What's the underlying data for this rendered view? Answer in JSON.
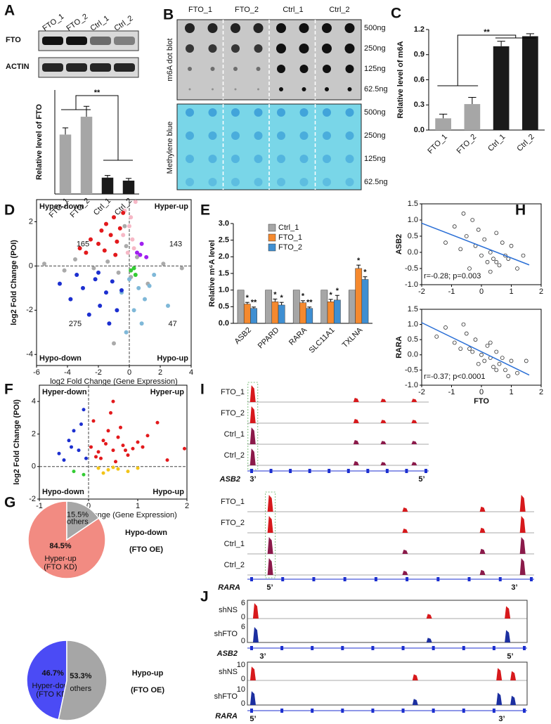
{
  "panel_labels": [
    "A",
    "B",
    "C",
    "D",
    "E",
    "F",
    "G",
    "H",
    "I",
    "J"
  ],
  "blot_A": {
    "samples": [
      "FTO_1",
      "FTO_2",
      "Ctrl_1",
      "Ctrl_2"
    ],
    "rows": [
      "FTO",
      "ACTIN"
    ]
  },
  "blot_B": {
    "samples": [
      "FTO_1",
      "FTO_2",
      "Ctrl_1",
      "Ctrl_2"
    ],
    "amounts": [
      "500ng",
      "250ng",
      "125ng",
      "62.5ng"
    ],
    "stains": [
      "m6A dot blot",
      "Methylene blue"
    ]
  },
  "chart_data": [
    {
      "type": "bar",
      "categories": [
        "FTO_1",
        "FTO_2",
        "Ctrl_1",
        "Ctrl_2"
      ],
      "values": [
        4.0,
        5.2,
        1.1,
        0.9
      ],
      "errors": [
        0.45,
        0.7,
        0.15,
        0.15
      ],
      "colors": [
        "#a6a6a6",
        "#a6a6a6",
        "#1a1a1a",
        "#1a1a1a"
      ],
      "ylim": [
        0,
        7
      ],
      "y_label": "Relative level of FTO",
      "annotation": "**"
    },
    {
      "type": "bar",
      "categories": [
        "FTO_1",
        "FTO_2",
        "Ctrl_1",
        "Ctrl_2"
      ],
      "values": [
        0.14,
        0.31,
        1.0,
        1.12
      ],
      "errors": [
        0.05,
        0.08,
        0.06,
        0.03
      ],
      "colors": [
        "#a6a6a6",
        "#a6a6a6",
        "#1a1a1a",
        "#1a1a1a"
      ],
      "ylim": [
        0,
        1.2
      ],
      "yticks": [
        {
          "value": 0,
          "label": "0.0"
        },
        0.3,
        0.6,
        0.9,
        1.2
      ],
      "y_label": "Relative level of m6A",
      "annotation": "**"
    },
    {
      "type": "bar",
      "categories": [
        "ASB2",
        "PPARD",
        "RARA",
        "SLC11A1",
        "TXLNA"
      ],
      "ylim": [
        0,
        3
      ],
      "yticks": [
        {
          "value": 0,
          "label": "0.0"
        },
        0.5,
        {
          "value": 1,
          "label": "1.0"
        },
        1.5,
        {
          "value": 2,
          "label": "2.0"
        },
        2.5,
        {
          "value": 3,
          "label": "3.0"
        }
      ],
      "y_label": "Relative m⁶A level",
      "legend": "upper-left",
      "series": [
        {
          "name": "Ctrl_1",
          "color": "#a6a6a6",
          "values": [
            1,
            1,
            1,
            1,
            1
          ]
        },
        {
          "name": "FTO_1",
          "color": "#f5892e",
          "values": [
            0.58,
            0.65,
            0.62,
            0.65,
            1.65
          ],
          "errors": [
            0.05,
            0.08,
            0.06,
            0.07,
            0.1
          ],
          "stars": [
            "*",
            "*",
            "*",
            "*",
            "*"
          ]
        },
        {
          "name": "FTO_2",
          "color": "#3f8fd2",
          "values": [
            0.45,
            0.55,
            0.45,
            0.7,
            1.32
          ],
          "errors": [
            0.04,
            0.08,
            0.04,
            0.14,
            0.08
          ],
          "stars": [
            "**",
            "*",
            "**",
            "*",
            "*"
          ]
        }
      ]
    },
    {
      "type": "scatter",
      "x_label": "log2 Fold Change (Gene Expression)",
      "y_label": "log2 Fold Change (POI)",
      "xlim": [
        -6,
        4
      ],
      "xticks": [
        -6,
        -4,
        -2,
        0,
        2,
        4
      ],
      "ylim": [
        -4.5,
        3
      ],
      "yticks": [
        -4,
        -2,
        0,
        2
      ],
      "quadrant_labels": [
        "Hyper-down",
        "Hyper-up",
        "Hypo-down",
        "Hypo-up"
      ],
      "counts": [
        165,
        143,
        275,
        47
      ],
      "series": [
        {
          "color": "#aaaaaa",
          "x": [
            -5.5,
            -4.2,
            -3.5,
            -2.3,
            -1.4,
            -0.7,
            -0.2,
            0.1,
            0.5,
            1.2,
            2.2,
            3.4,
            -1.0,
            -0.3
          ],
          "values": [
            0.1,
            -0.2,
            0.3,
            -0.1,
            0.2,
            -0.3,
            0.9,
            -0.5,
            0.4,
            -0.8,
            0.1,
            -0.1,
            -3.5,
            1.8
          ]
        },
        {
          "color": "#f6b8c6",
          "x": [
            -0.3,
            0,
            0.2,
            0.4,
            -0.1,
            0.3,
            0.1,
            -0.4
          ],
          "values": [
            2.5,
            1.8,
            1.2,
            2.9,
            0.6,
            0.8,
            2.2,
            1.4
          ]
        },
        {
          "color": "#7fb8d8",
          "x": [
            -0.5,
            0,
            0.3,
            0.6,
            1.0,
            1.6,
            2.5,
            -0.2,
            0.8,
            1.3
          ],
          "values": [
            -1.2,
            -0.6,
            -2.0,
            -1.0,
            -1.5,
            -0.4,
            -1.8,
            -3.0,
            -2.6,
            -0.9
          ]
        },
        {
          "color": "#e3191c",
          "x": [
            -3.2,
            -2.5,
            -2,
            -1.8,
            -1.5,
            -1.2,
            -1,
            -0.8,
            -0.6,
            -0.4,
            -2.8,
            -1.6,
            -0.9
          ],
          "values": [
            0.8,
            1.2,
            1.0,
            1.6,
            1.9,
            1.4,
            2.2,
            1.1,
            1.7,
            2.4,
            0.6,
            0.7,
            0.5
          ]
        },
        {
          "color": "#1c2fd0",
          "x": [
            -4.5,
            -3.8,
            -3,
            -2.6,
            -2.2,
            -1.9,
            -1.5,
            -1.1,
            -0.8,
            -0.5,
            -3.4,
            -2.0,
            -1.3
          ],
          "values": [
            -0.8,
            -1.5,
            -1.0,
            -2.2,
            -0.6,
            -1.8,
            -1.2,
            -0.7,
            -2.0,
            -1.1,
            -0.4,
            -0.3,
            -2.6
          ]
        },
        {
          "color": "#a020f0",
          "x": [
            0.5,
            0.8,
            1.1,
            0.7
          ],
          "values": [
            0.6,
            1.0,
            0.4,
            0.5
          ]
        },
        {
          "color": "#33cc33",
          "x": [
            0.1,
            0.4,
            0.3
          ],
          "values": [
            -0.2,
            -0.4,
            -0.1
          ]
        }
      ]
    },
    {
      "type": "scatter",
      "x_label": "log2 Fold Change (Gene Expression)",
      "y_label": "log2 Fold Change (POI)",
      "xlim": [
        -1,
        2
      ],
      "xticks": [
        -1,
        0,
        1,
        2
      ],
      "ylim": [
        -2,
        5
      ],
      "yticks": [
        -2,
        0,
        2,
        4
      ],
      "quadrant_labels": [
        "Hyper-down",
        "Hyper-up",
        "Hypo-down",
        "Hypo-up"
      ],
      "series": [
        {
          "color": "#e3191c",
          "x": [
            0.05,
            0.1,
            0.2,
            0.3,
            0.4,
            0.5,
            0.6,
            0.7,
            0.8,
            0.9,
            1.0,
            1.2,
            1.4,
            1.6,
            0.25,
            0.45,
            0.65,
            0.35,
            0.55,
            0.15,
            0.75,
            1.1,
            1.95,
            0.5
          ],
          "values": [
            1.2,
            2.8,
            0.9,
            1.6,
            2.2,
            1.0,
            1.8,
            1.3,
            0.7,
            1.1,
            1.5,
            1.9,
            2.7,
            0.4,
            0.5,
            3.3,
            2.4,
            1.4,
            0.3,
            0.6,
            1.0,
            1.2,
            1.1,
            4.0
          ]
        },
        {
          "color": "#1c2fd0",
          "x": [
            -0.6,
            -0.4,
            -0.3,
            -0.2,
            -0.1,
            -0.05,
            -0.35,
            -0.15,
            -0.5
          ],
          "values": [
            0.8,
            1.6,
            2.2,
            1.0,
            3.5,
            0.5,
            1.2,
            2.6,
            0.4
          ]
        },
        {
          "color": "#f2c418",
          "x": [
            0.2,
            0.4,
            0.6,
            0.8,
            1.0,
            0.3,
            0.5
          ],
          "values": [
            -0.1,
            -0.2,
            -0.15,
            -0.3,
            -0.1,
            -0.4,
            -0.05
          ]
        },
        {
          "color": "#33cc33",
          "x": [
            -0.3,
            -0.1
          ],
          "values": [
            -0.3,
            -0.5
          ]
        }
      ]
    },
    {
      "type": "pie",
      "values": [
        84.5,
        15.5
      ],
      "value_labels": [
        "84.5%",
        "15.5%"
      ],
      "labels": [
        [
          "Hyper-up",
          "(FTO KD)"
        ],
        [
          "others"
        ]
      ],
      "colors": [
        "#f28b82",
        "#a6a6a6"
      ],
      "side_label": [
        "Hypo-down",
        "(FTO OE)"
      ],
      "side_color": "#e3191c"
    },
    {
      "type": "pie",
      "values": [
        46.7,
        53.3
      ],
      "value_labels": [
        "46.7%",
        "53.3%"
      ],
      "labels": [
        [
          "Hyper-down",
          "(FTO KD)"
        ],
        [
          "others"
        ]
      ],
      "colors": [
        "#4b4bf5",
        "#a6a6a6"
      ],
      "side_label": [
        "Hypo-up",
        "(FTO OE)"
      ],
      "side_color": "#1c2fd0"
    },
    {
      "type": "scatter",
      "marker": "open",
      "trendline": true,
      "y_label": "ASB2",
      "annotation": "r=-0.28; p=0.003",
      "xlim": [
        -2,
        2
      ],
      "xticks": [
        -2,
        -1,
        0,
        1,
        2
      ],
      "ylim": [
        -1,
        1.5
      ],
      "yticks": [
        {
          "value": -1,
          "label": "-1.0"
        },
        -0.5,
        {
          "value": 0,
          "label": "0.0"
        },
        0.5,
        {
          "value": 1,
          "label": "1.0"
        },
        1.5
      ],
      "series": [
        {
          "color": "#333333",
          "x": [
            -1.2,
            -0.9,
            -0.7,
            -0.5,
            -0.3,
            -0.2,
            0,
            0.1,
            0.2,
            0.3,
            0.4,
            0.5,
            0.6,
            0.8,
            1.0,
            1.2,
            -0.6,
            0.3,
            -0.1,
            0.7,
            0.9,
            -0.4,
            0.5,
            1.4
          ],
          "values": [
            0.3,
            0.8,
            0.1,
            0.5,
            1.0,
            0.2,
            -0.1,
            0.4,
            -0.3,
            0.0,
            -0.2,
            0.6,
            -0.4,
            -0.1,
            0.2,
            -0.5,
            1.2,
            -0.6,
            0.7,
            0.3,
            -0.2,
            -0.5,
            -0.3,
            -0.1
          ]
        }
      ]
    },
    {
      "type": "scatter",
      "marker": "open",
      "trendline": true,
      "y_label": "RARA",
      "x_label": "FTO",
      "annotation": "r=-0.37; p<0.0001",
      "xlim": [
        -2,
        2
      ],
      "xticks": [
        -2,
        -1,
        0,
        1,
        2
      ],
      "ylim": [
        -1,
        1.5
      ],
      "yticks": [
        {
          "value": -1,
          "label": "-1.0"
        },
        -0.5,
        {
          "value": 0,
          "label": "0.0"
        },
        0.5,
        {
          "value": 1,
          "label": "1.0"
        },
        1.5
      ],
      "series": [
        {
          "color": "#333333",
          "x": [
            -1.5,
            -1.2,
            -0.9,
            -0.7,
            -0.5,
            -0.3,
            -0.2,
            0,
            0.1,
            0.2,
            0.3,
            0.4,
            0.5,
            0.6,
            0.8,
            1.0,
            1.2,
            -0.6,
            0.3,
            -0.1,
            0.7,
            0.9,
            -0.4,
            0.5,
            1.5
          ],
          "values": [
            0.6,
            0.9,
            0.4,
            0.2,
            0.7,
            0.1,
            0.5,
            0.0,
            -0.2,
            0.3,
            -0.1,
            -0.4,
            0.1,
            -0.3,
            -0.5,
            -0.2,
            -0.6,
            1.0,
            0.4,
            -0.3,
            -0.1,
            -0.7,
            0.2,
            -0.5,
            -0.2
          ]
        }
      ]
    }
  ],
  "track_I": {
    "samples": [
      "FTO_1",
      "FTO_2",
      "Ctrl_1",
      "Ctrl_2"
    ],
    "genes": [
      {
        "name": "ASB2",
        "ends": [
          "3’",
          "5’"
        ]
      },
      {
        "name": "RARA",
        "ends": [
          "5’",
          "3’"
        ]
      }
    ]
  },
  "track_J": {
    "samples": [
      "shNS",
      "shFTO"
    ],
    "genes": [
      {
        "name": "ASB2",
        "ends": [
          "3’",
          "5’"
        ],
        "scale": [
          6,
          0
        ]
      },
      {
        "name": "RARA",
        "ends": [
          "5’",
          "3’"
        ],
        "scale": [
          10,
          0
        ]
      }
    ]
  }
}
